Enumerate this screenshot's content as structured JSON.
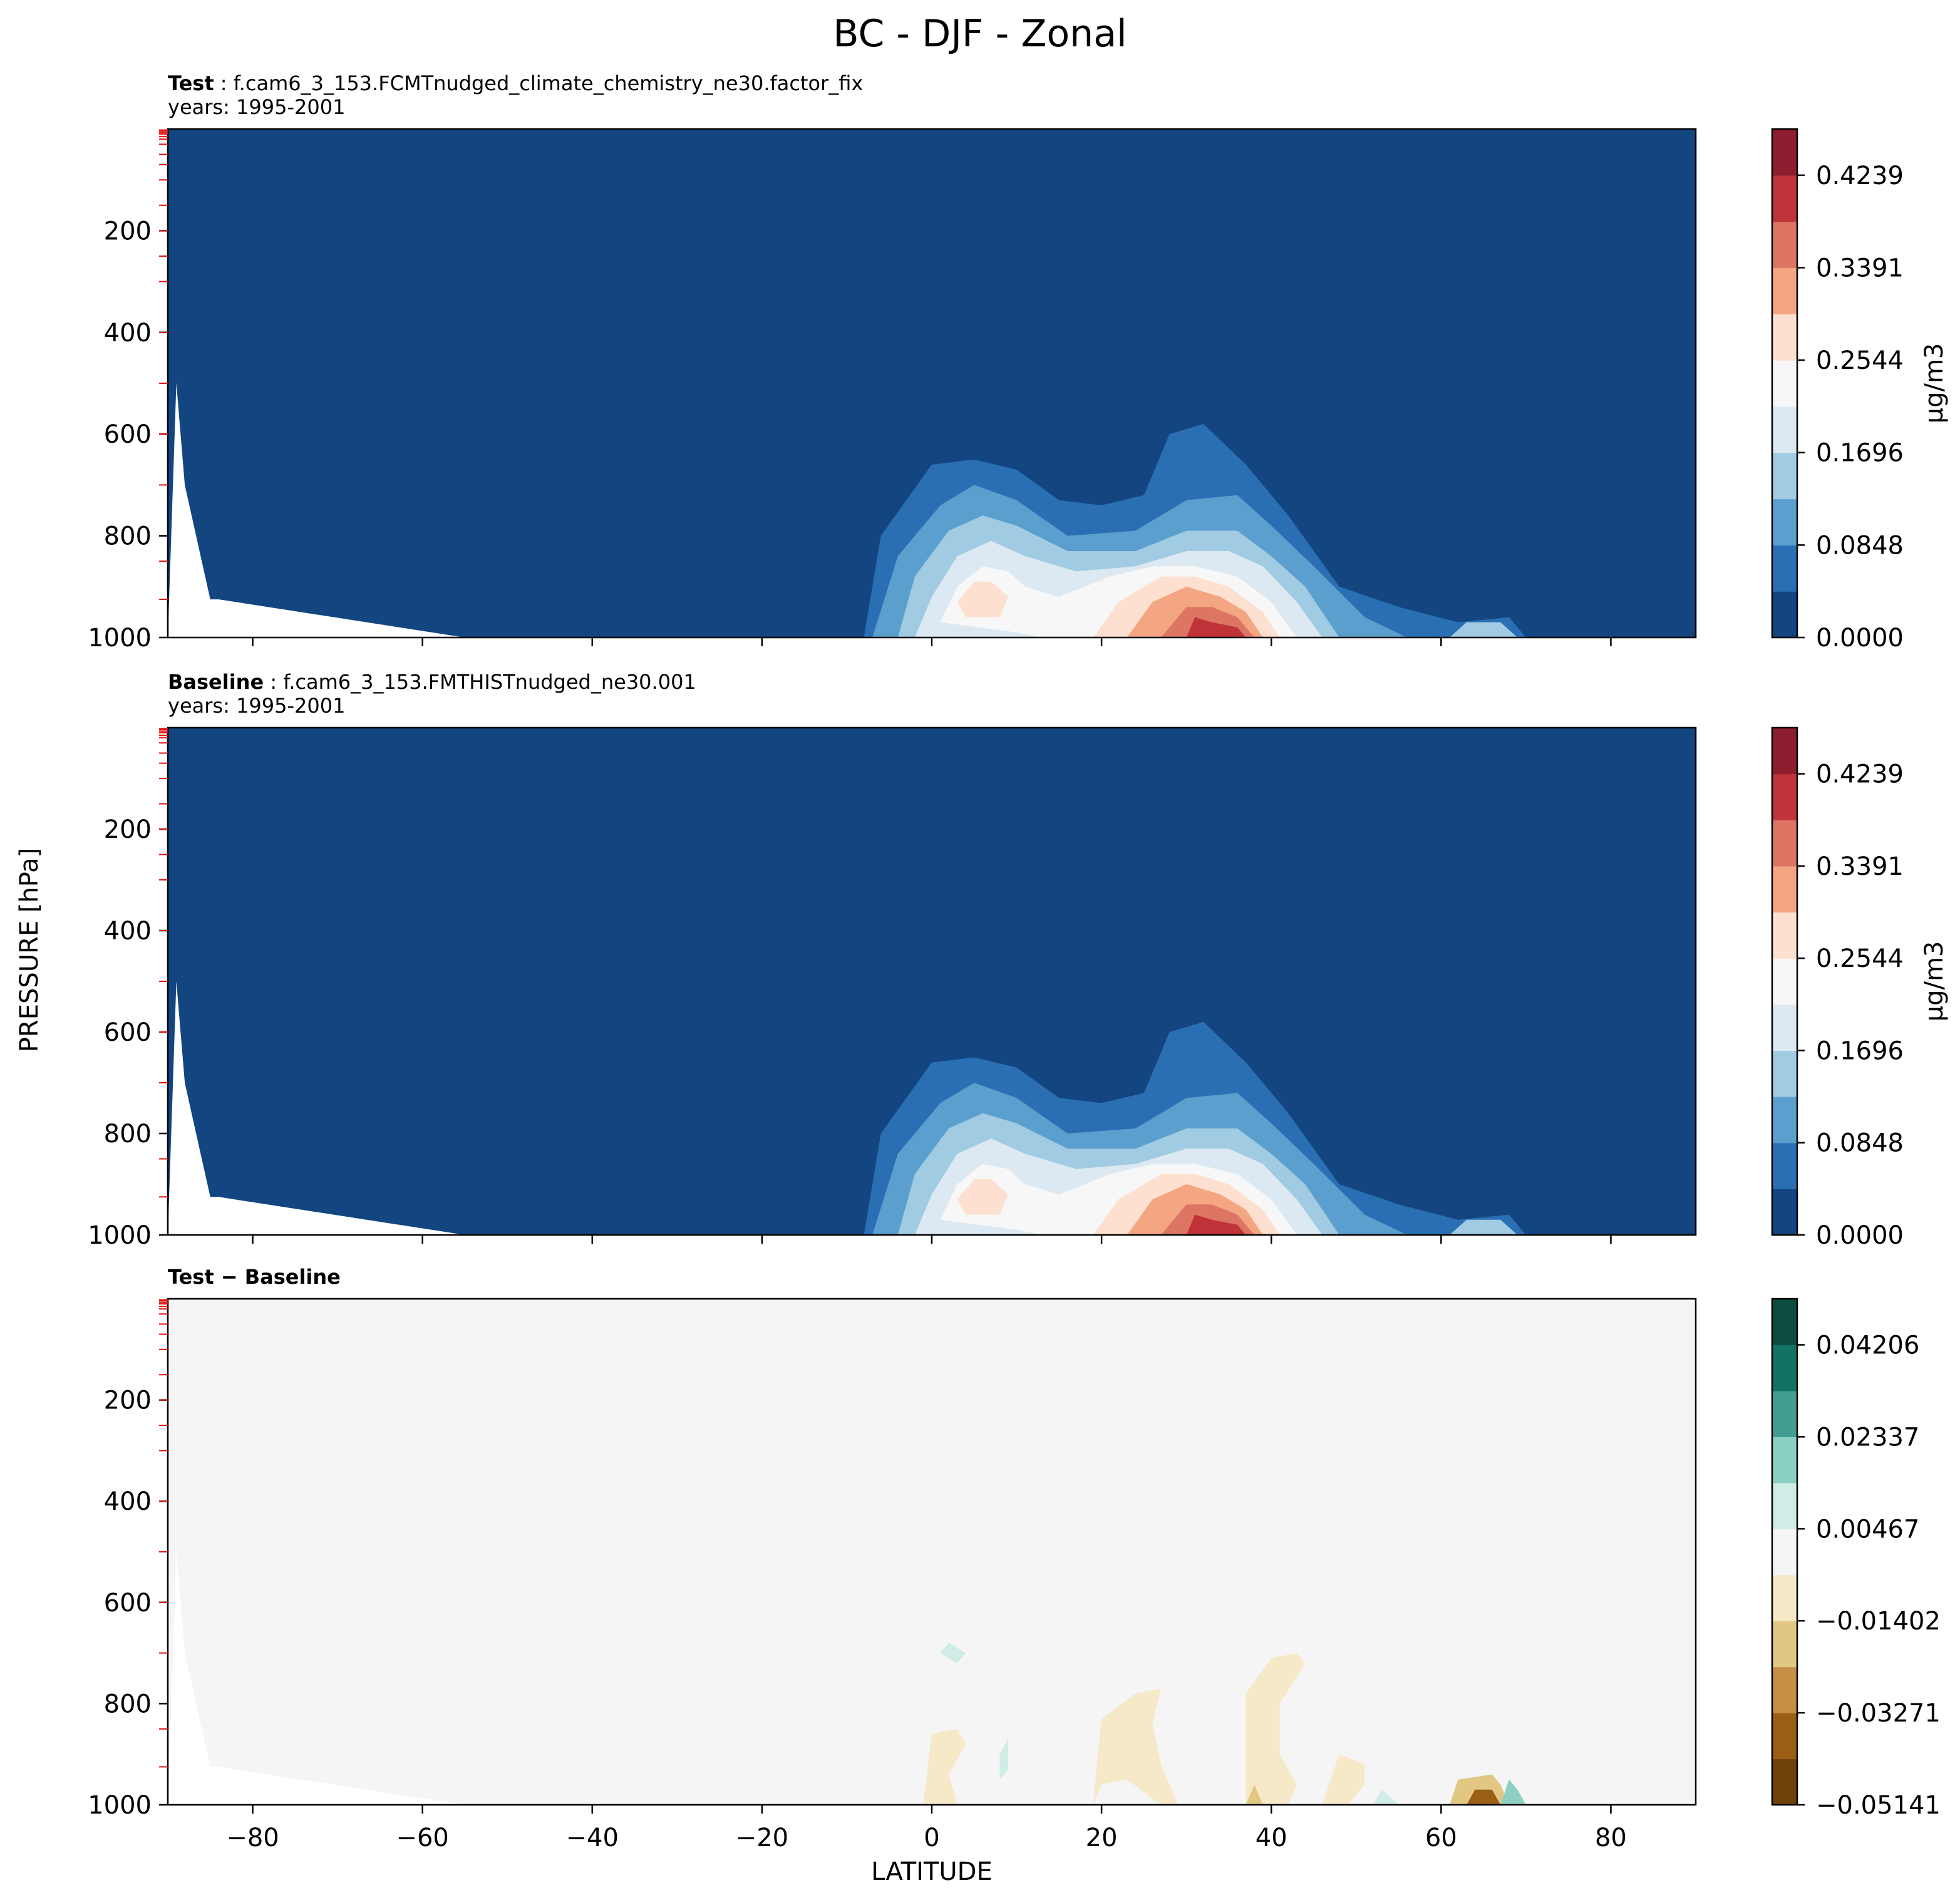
{
  "suptitle": "BC - DJF - Zonal",
  "panels": [
    {
      "name": "test",
      "label_bold": "Test",
      "label_rest": " : f.cam6_3_153.FCMTnudged_climate_chemistry_ne30.factor_fix",
      "years": "years: 1995-2001"
    },
    {
      "name": "baseline",
      "label_bold": "Baseline",
      "label_rest": " : f.cam6_3_153.FMTHISTnudged_ne30.001",
      "years": "years: 1995-2001"
    },
    {
      "name": "diff",
      "label_bold": "Test − Baseline",
      "label_rest": "",
      "years": ""
    }
  ],
  "colorbars": [
    {
      "unit": "μg/m3",
      "ticks": [
        "0.0000",
        "0.0848",
        "0.1696",
        "0.2544",
        "0.3391",
        "0.4239"
      ],
      "colors": [
        "#134580",
        "#2a6fb4",
        "#5a9fcd",
        "#a1cbe2",
        "#dce9f2",
        "#f7f7f7",
        "#fde0d0",
        "#f4a582",
        "#dd7565",
        "#bf3339",
        "#8c1e30"
      ]
    },
    {
      "unit": "μg/m3",
      "ticks": [
        "0.0000",
        "0.0848",
        "0.1696",
        "0.2544",
        "0.3391",
        "0.4239"
      ],
      "colors": [
        "#134580",
        "#2a6fb4",
        "#5a9fcd",
        "#a1cbe2",
        "#dce9f2",
        "#f7f7f7",
        "#fde0d0",
        "#f4a582",
        "#dd7565",
        "#bf3339",
        "#8c1e30"
      ]
    },
    {
      "unit": "",
      "ticks": [
        "−0.05141",
        "−0.03271",
        "−0.01402",
        "0.00467",
        "0.02337",
        "0.04206"
      ],
      "colors": [
        "#6e4107",
        "#9a5e15",
        "#c68f44",
        "#e2c783",
        "#f5e9c8",
        "#f4f5f4",
        "#cfece7",
        "#8bd0c2",
        "#439d92",
        "#137266",
        "#0c4d3f"
      ]
    }
  ],
  "chart_data": {
    "type": "heatmap",
    "title": "BC - DJF - Zonal",
    "xlabel": "LATITUDE",
    "ylabel": "PRESSURE [hPa]",
    "xlim": [
      -90,
      90
    ],
    "ylim": [
      1000,
      0
    ],
    "xticks": [
      "−80",
      "−60",
      "−40",
      "−20",
      "0",
      "20",
      "40",
      "60",
      "80"
    ],
    "yticks": [
      "200",
      "400",
      "600",
      "800",
      "1000"
    ],
    "colors": {
      "background_test": "#134580",
      "background_diff": "#f4f5f4",
      "missing": "#ffffff",
      "ticks_minor": "#e01010"
    },
    "fields": [
      {
        "panel": "test",
        "terrain_lat": [
          -89,
          -88,
          -86,
          -85,
          -84,
          -55
        ],
        "terrain_p": [
          500,
          700,
          850,
          925,
          925,
          1000
        ],
        "contours": [
          {
            "level": 1,
            "lat": [
              -8,
              -6,
              0,
              5,
              10,
              15,
              20,
              25,
              28,
              32,
              37,
              42,
              48,
              55,
              62,
              68,
              70,
              -8
            ],
            "p": [
              1000,
              800,
              660,
              650,
              670,
              730,
              740,
              720,
              600,
              580,
              660,
              760,
              900,
              940,
              970,
              960,
              1000,
              1000
            ]
          },
          {
            "level": 2,
            "lat": [
              -7,
              -4,
              1,
              5,
              10,
              16,
              24,
              30,
              36,
              40,
              45,
              51,
              56,
              -7
            ],
            "p": [
              1000,
              840,
              740,
              700,
              730,
              800,
              790,
              730,
              720,
              780,
              860,
              960,
              1000,
              1000
            ]
          },
          {
            "level": 3,
            "lat": [
              -4,
              -2,
              2,
              6,
              10,
              16,
              24,
              30,
              36,
              40,
              44,
              48,
              -4
            ],
            "p": [
              1000,
              880,
              790,
              760,
              780,
              830,
              830,
              790,
              790,
              840,
              900,
              1000,
              1000
            ]
          },
          {
            "level": 4,
            "lat": [
              -2,
              0,
              3,
              7,
              11,
              17,
              24,
              30,
              35,
              39,
              43,
              46,
              -2
            ],
            "p": [
              1000,
              920,
              840,
              810,
              840,
              870,
              860,
              830,
              830,
              860,
              930,
              1000,
              1000
            ]
          },
          {
            "level": 5,
            "lat": [
              1,
              3,
              6,
              9,
              11,
              15,
              21,
              26,
              31,
              36,
              40,
              43,
              13,
              10,
              1
            ],
            "p": [
              970,
              900,
              860,
              870,
              900,
              920,
              880,
              860,
              860,
              880,
              930,
              1000,
              1000,
              990,
              970
            ]
          },
          {
            "level": 6,
            "lat": [
              3,
              5,
              7,
              9,
              8,
              4,
              3
            ],
            "p": [
              930,
              890,
              890,
              920,
              960,
              960,
              930
            ]
          },
          {
            "level": 6,
            "lat": [
              19,
              22,
              27,
              31,
              35,
              39,
              41,
              19
            ],
            "p": [
              1000,
              930,
              880,
              880,
              900,
              950,
              1000,
              1000
            ]
          },
          {
            "level": 7,
            "lat": [
              23,
              26,
              30,
              34,
              37,
              39,
              23
            ],
            "p": [
              1000,
              930,
              900,
              920,
              950,
              1000,
              1000
            ]
          },
          {
            "level": 8,
            "lat": [
              27,
              30,
              33,
              36,
              38,
              27
            ],
            "p": [
              1000,
              940,
              940,
              960,
              1000,
              1000
            ]
          },
          {
            "level": 9,
            "lat": [
              30,
              31,
              33,
              36,
              37,
              30
            ],
            "p": [
              1000,
              960,
              970,
              980,
              1000,
              1000
            ]
          },
          {
            "level": 3,
            "lat": [
              61,
              63,
              67,
              69,
              61
            ],
            "p": [
              1000,
              970,
              970,
              1000,
              1000
            ]
          }
        ]
      },
      {
        "panel": "baseline",
        "terrain_lat": [
          -89,
          -88,
          -86,
          -85,
          -84,
          -55
        ],
        "terrain_p": [
          500,
          700,
          850,
          925,
          925,
          1000
        ],
        "contours": [
          {
            "level": 1,
            "lat": [
              -8,
              -6,
              0,
              5,
              10,
              15,
              20,
              25,
              28,
              32,
              37,
              42,
              48,
              55,
              62,
              68,
              70,
              -8
            ],
            "p": [
              1000,
              800,
              660,
              650,
              670,
              730,
              740,
              720,
              600,
              580,
              660,
              760,
              900,
              940,
              970,
              960,
              1000,
              1000
            ]
          },
          {
            "level": 2,
            "lat": [
              -7,
              -4,
              1,
              5,
              10,
              16,
              24,
              30,
              36,
              40,
              45,
              51,
              56,
              -7
            ],
            "p": [
              1000,
              840,
              740,
              700,
              730,
              800,
              790,
              730,
              720,
              780,
              860,
              960,
              1000,
              1000
            ]
          },
          {
            "level": 3,
            "lat": [
              -4,
              -2,
              2,
              6,
              10,
              16,
              24,
              30,
              36,
              40,
              44,
              48,
              -4
            ],
            "p": [
              1000,
              880,
              790,
              760,
              780,
              830,
              830,
              790,
              790,
              840,
              900,
              1000,
              1000
            ]
          },
          {
            "level": 4,
            "lat": [
              -2,
              0,
              3,
              7,
              11,
              17,
              24,
              30,
              35,
              39,
              43,
              46,
              -2
            ],
            "p": [
              1000,
              920,
              840,
              810,
              840,
              870,
              860,
              830,
              830,
              860,
              930,
              1000,
              1000
            ]
          },
          {
            "level": 5,
            "lat": [
              1,
              3,
              6,
              9,
              11,
              15,
              21,
              26,
              31,
              36,
              40,
              43,
              13,
              10,
              1
            ],
            "p": [
              970,
              900,
              860,
              870,
              900,
              920,
              880,
              860,
              860,
              880,
              930,
              1000,
              1000,
              990,
              970
            ]
          },
          {
            "level": 6,
            "lat": [
              3,
              5,
              7,
              9,
              8,
              4,
              3
            ],
            "p": [
              930,
              890,
              890,
              920,
              960,
              960,
              930
            ]
          },
          {
            "level": 6,
            "lat": [
              19,
              22,
              27,
              31,
              35,
              39,
              41,
              19
            ],
            "p": [
              1000,
              930,
              880,
              880,
              900,
              950,
              1000,
              1000
            ]
          },
          {
            "level": 7,
            "lat": [
              23,
              26,
              30,
              34,
              37,
              39,
              23
            ],
            "p": [
              1000,
              930,
              900,
              920,
              950,
              1000,
              1000
            ]
          },
          {
            "level": 8,
            "lat": [
              27,
              30,
              33,
              36,
              38,
              27
            ],
            "p": [
              1000,
              940,
              940,
              960,
              1000,
              1000
            ]
          },
          {
            "level": 9,
            "lat": [
              30,
              31,
              33,
              36,
              37,
              30
            ],
            "p": [
              1000,
              960,
              970,
              980,
              1000,
              1000
            ]
          },
          {
            "level": 3,
            "lat": [
              61,
              63,
              67,
              69,
              61
            ],
            "p": [
              1000,
              970,
              970,
              1000,
              1000
            ]
          }
        ]
      },
      {
        "panel": "diff",
        "terrain_lat": [
          -89,
          -88,
          -86,
          -85,
          -84,
          -55
        ],
        "terrain_p": [
          500,
          700,
          850,
          925,
          925,
          1000
        ],
        "contours": [
          {
            "level": 4,
            "lat": [
              -1,
              0,
              3,
              4,
              2,
              3,
              0,
              -1
            ],
            "p": [
              1000,
              860,
              850,
              880,
              940,
              1000,
              1000,
              1000
            ]
          },
          {
            "level": 4,
            "lat": [
              19,
              20,
              24,
              27,
              26,
              27,
              29,
              27,
              23,
              20,
              19
            ],
            "p": [
              1000,
              830,
              780,
              770,
              840,
              920,
              1000,
              1000,
              950,
              960,
              1000
            ]
          },
          {
            "level": 4,
            "lat": [
              37,
              37,
              40,
              43,
              44,
              41,
              41,
              43,
              42,
              37
            ],
            "p": [
              1000,
              780,
              710,
              700,
              720,
              800,
              900,
              960,
              1000,
              1000
            ]
          },
          {
            "level": 4,
            "lat": [
              46,
              48,
              51,
              51,
              49,
              46
            ],
            "p": [
              1000,
              900,
              920,
              960,
              1000,
              1000
            ]
          },
          {
            "level": 6,
            "lat": [
              1,
              2,
              4,
              3,
              1
            ],
            "p": [
              700,
              680,
              700,
              720,
              700
            ]
          },
          {
            "level": 6,
            "lat": [
              8,
              9,
              9,
              8,
              8
            ],
            "p": [
              900,
              870,
              930,
              950,
              900
            ]
          },
          {
            "level": 3,
            "lat": [
              37,
              38,
              39,
              38,
              37
            ],
            "p": [
              1000,
              960,
              1000,
              1000,
              1000
            ]
          },
          {
            "level": 6,
            "lat": [
              52,
              53,
              55,
              52
            ],
            "p": [
              1000,
              970,
              1000,
              1000
            ]
          },
          {
            "level": 3,
            "lat": [
              61,
              62,
              66,
              67,
              68,
              61
            ],
            "p": [
              1000,
              950,
              940,
              960,
              1000,
              1000
            ]
          },
          {
            "level": 1,
            "lat": [
              63,
              64,
              66,
              67,
              63
            ],
            "p": [
              1000,
              970,
              970,
              1000,
              1000
            ]
          },
          {
            "level": 7,
            "lat": [
              67,
              68,
              69,
              70,
              67
            ],
            "p": [
              1000,
              950,
              970,
              1000,
              1000
            ]
          }
        ]
      }
    ]
  }
}
